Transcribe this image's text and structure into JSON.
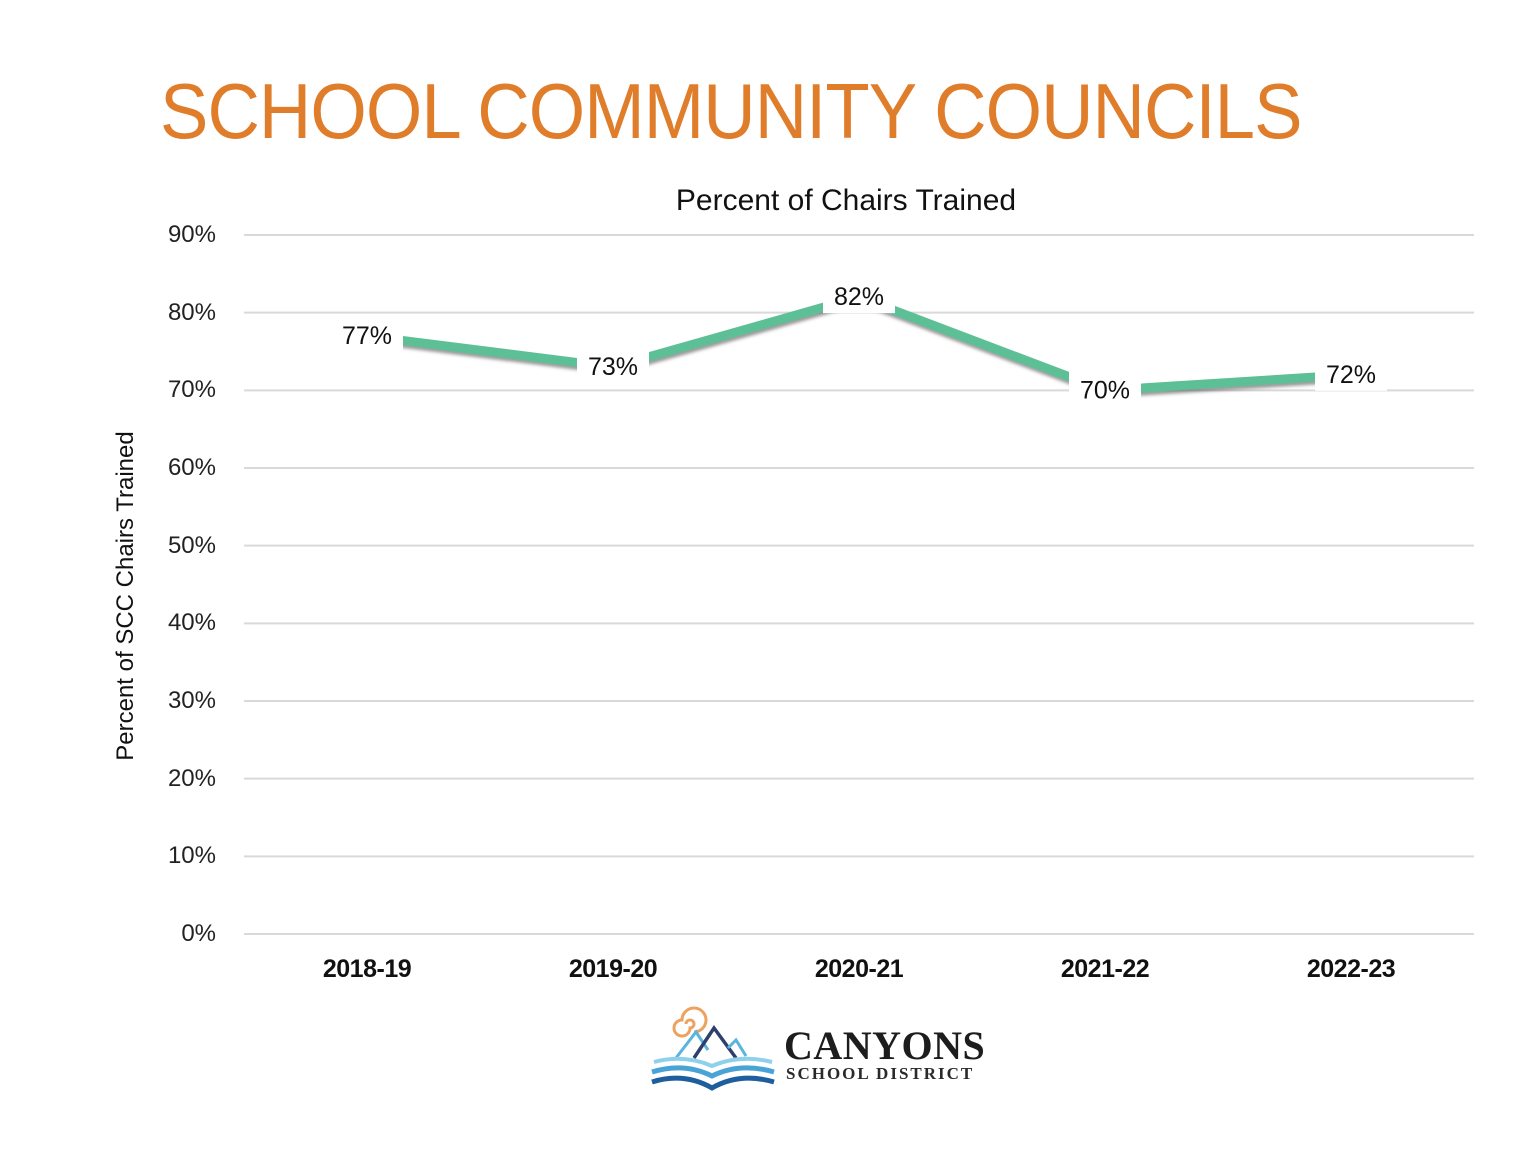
{
  "slide": {
    "title": "SCHOOL COMMUNITY COUNCILS",
    "title_color": "#E07D2B"
  },
  "chart_data": {
    "type": "line",
    "title": "Percent of Chairs Trained",
    "xlabel": "",
    "ylabel": "Percent of SCC Chairs Trained",
    "categories": [
      "2018-19",
      "2019-20",
      "2020-21",
      "2021-22",
      "2022-23"
    ],
    "series": [
      {
        "name": "Percent of Chairs Trained",
        "values": [
          77,
          73,
          82,
          70,
          72
        ],
        "labels": [
          "77%",
          "73%",
          "82%",
          "70%",
          "72%"
        ],
        "color": "#5DBF96"
      }
    ],
    "ylim": [
      0,
      90
    ],
    "yticks": [
      "0%",
      "10%",
      "20%",
      "30%",
      "40%",
      "50%",
      "60%",
      "70%",
      "80%",
      "90%"
    ],
    "grid": true,
    "legend": "none"
  },
  "logo": {
    "name": "CANYONS",
    "subtitle": "SCHOOL DISTRICT"
  }
}
